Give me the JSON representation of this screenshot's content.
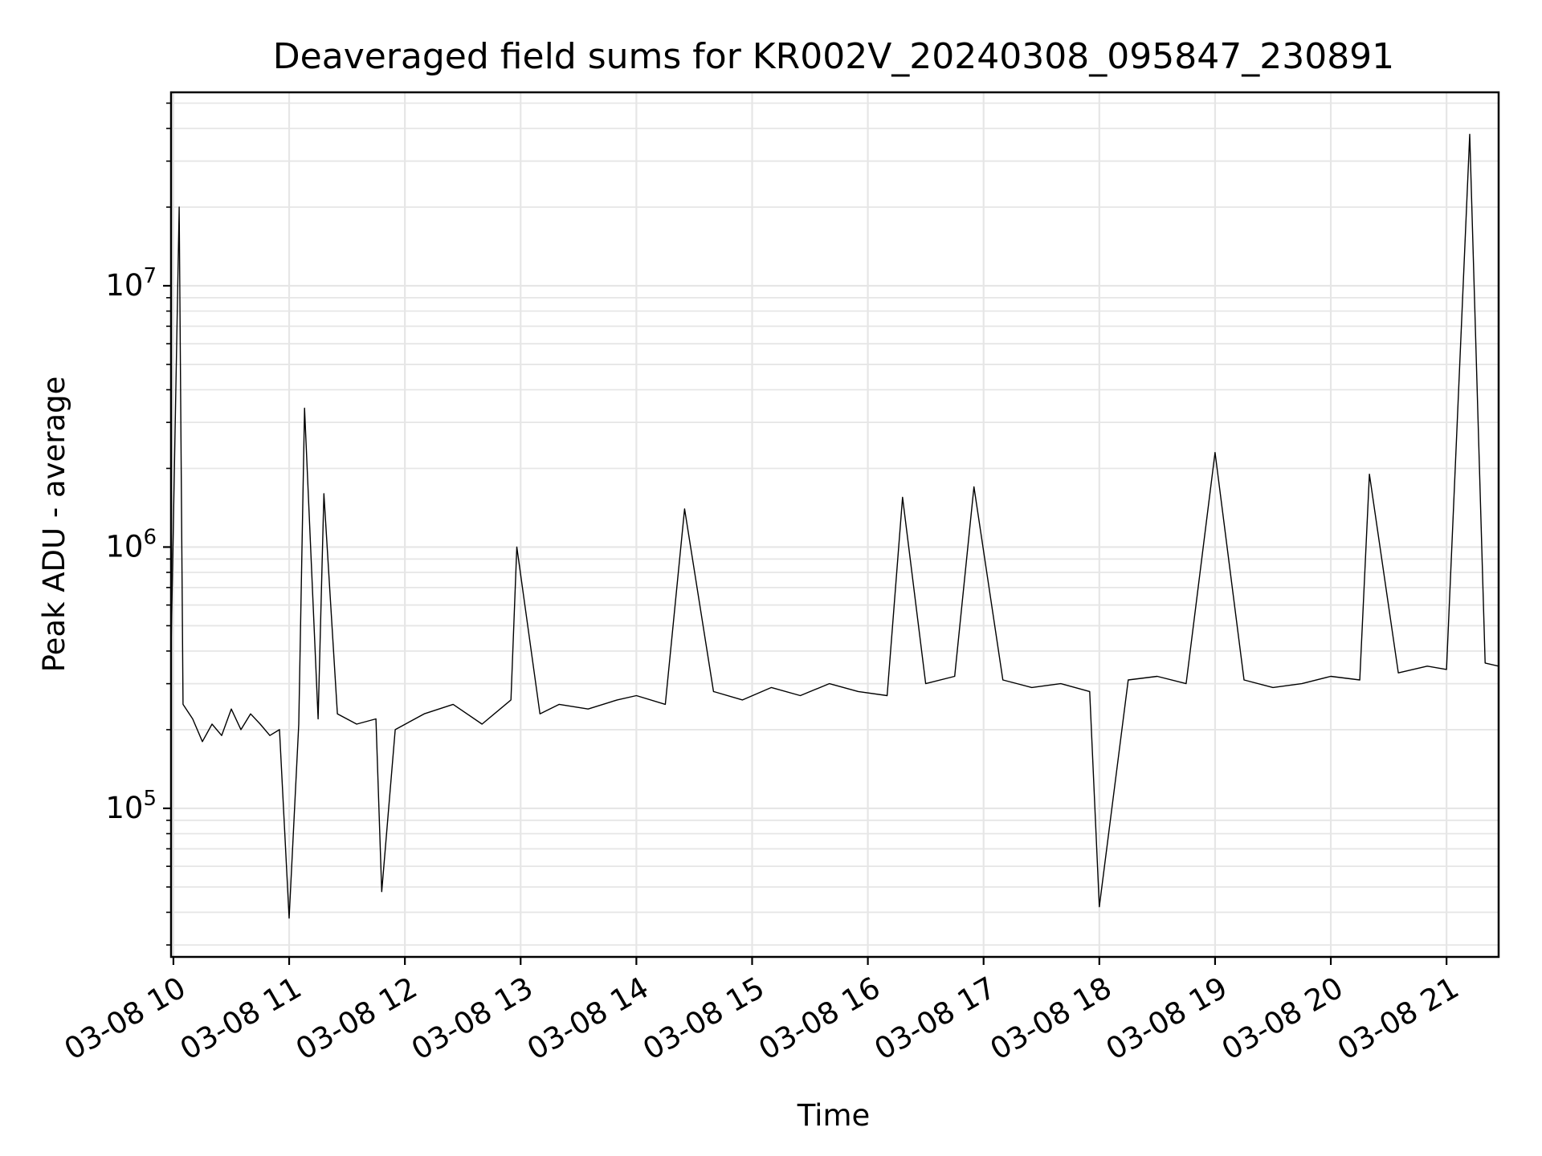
{
  "chart_data": {
    "type": "line",
    "title": "Deaveraged field sums for KR002V_20240308_095847_230891",
    "xlabel": "Time",
    "ylabel": "Peak ADU - average",
    "yscale": "log",
    "ylim": [
      27000,
      55000000
    ],
    "xlim": [
      "2024-03-08 09:58:47",
      "2024-03-08 21:27"
    ],
    "grid": true,
    "line_color": "#000000",
    "x_ticks": [
      "03-08 10",
      "03-08 11",
      "03-08 12",
      "03-08 13",
      "03-08 14",
      "03-08 15",
      "03-08 16",
      "03-08 17",
      "03-08 18",
      "03-08 19",
      "03-08 20",
      "03-08 21"
    ],
    "y_ticks": [
      {
        "value": 100000,
        "base": "10",
        "exp": "5"
      },
      {
        "value": 1000000,
        "base": "10",
        "exp": "6"
      },
      {
        "value": 10000000,
        "base": "10",
        "exp": "7"
      }
    ],
    "series": [
      {
        "x": [
          "2024-03-08 09:58:47",
          "2024-03-08 10:03",
          "2024-03-08 10:05",
          "2024-03-08 10:10",
          "2024-03-08 10:15",
          "2024-03-08 10:20",
          "2024-03-08 10:25",
          "2024-03-08 10:30",
          "2024-03-08 10:35",
          "2024-03-08 10:40",
          "2024-03-08 10:45",
          "2024-03-08 10:50",
          "2024-03-08 10:55",
          "2024-03-08 11:00",
          "2024-03-08 11:05",
          "2024-03-08 11:08",
          "2024-03-08 11:15",
          "2024-03-08 11:18",
          "2024-03-08 11:25",
          "2024-03-08 11:35",
          "2024-03-08 11:45",
          "2024-03-08 11:48",
          "2024-03-08 11:55",
          "2024-03-08 12:10",
          "2024-03-08 12:25",
          "2024-03-08 12:40",
          "2024-03-08 12:55",
          "2024-03-08 12:58",
          "2024-03-08 13:10",
          "2024-03-08 13:20",
          "2024-03-08 13:35",
          "2024-03-08 13:50",
          "2024-03-08 14:00",
          "2024-03-08 14:15",
          "2024-03-08 14:25",
          "2024-03-08 14:40",
          "2024-03-08 14:55",
          "2024-03-08 15:10",
          "2024-03-08 15:25",
          "2024-03-08 15:40",
          "2024-03-08 15:55",
          "2024-03-08 16:10",
          "2024-03-08 16:18",
          "2024-03-08 16:30",
          "2024-03-08 16:45",
          "2024-03-08 16:55",
          "2024-03-08 17:10",
          "2024-03-08 17:25",
          "2024-03-08 17:40",
          "2024-03-08 17:55",
          "2024-03-08 18:00",
          "2024-03-08 18:15",
          "2024-03-08 18:30",
          "2024-03-08 18:45",
          "2024-03-08 19:00",
          "2024-03-08 19:15",
          "2024-03-08 19:30",
          "2024-03-08 19:45",
          "2024-03-08 20:00",
          "2024-03-08 20:15",
          "2024-03-08 20:20",
          "2024-03-08 20:35",
          "2024-03-08 20:50",
          "2024-03-08 21:00",
          "2024-03-08 21:12",
          "2024-03-08 21:20",
          "2024-03-08 21:27"
        ],
        "y": [
          400000,
          20000000,
          250000,
          220000,
          180000,
          210000,
          190000,
          240000,
          200000,
          230000,
          210000,
          190000,
          200000,
          38000,
          210000,
          3400000,
          220000,
          1600000,
          230000,
          210000,
          220000,
          48000,
          200000,
          230000,
          250000,
          210000,
          260000,
          1000000,
          230000,
          250000,
          240000,
          260000,
          270000,
          250000,
          1400000,
          280000,
          260000,
          290000,
          270000,
          300000,
          280000,
          270000,
          1550000,
          300000,
          320000,
          1700000,
          310000,
          290000,
          300000,
          280000,
          42000,
          310000,
          320000,
          300000,
          2300000,
          310000,
          290000,
          300000,
          320000,
          310000,
          1900000,
          330000,
          350000,
          340000,
          38000000,
          360000,
          350000
        ]
      }
    ]
  }
}
